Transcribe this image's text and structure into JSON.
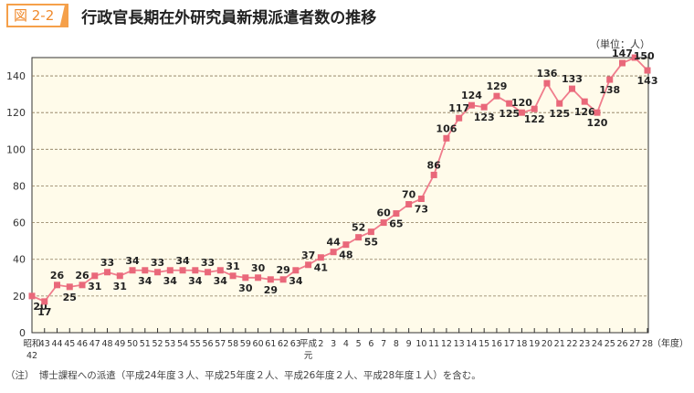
{
  "header": {
    "figure_label": "図 2-2",
    "title": "行政官長期在外研究員新規派遣者数の推移"
  },
  "note": "（注）　博士課程への派遣（平成24年度３人、平成25年度２人、平成26年度２人、平成28年度１人）を含む。",
  "chart_data": {
    "type": "line",
    "title": "行政官長期在外研究員新規派遣者数の推移",
    "unit_label": "（単位：人）",
    "xlabel": "（年度）",
    "ylim": [
      0,
      150
    ],
    "yticks": [
      0,
      20,
      40,
      60,
      80,
      100,
      120,
      140
    ],
    "grid": true,
    "x": [
      "昭和42",
      "43",
      "44",
      "45",
      "46",
      "47",
      "48",
      "49",
      "50",
      "51",
      "52",
      "53",
      "54",
      "55",
      "56",
      "57",
      "58",
      "59",
      "60",
      "61",
      "62",
      "63",
      "平成元",
      "2",
      "3",
      "4",
      "5",
      "6",
      "7",
      "8",
      "9",
      "10",
      "11",
      "12",
      "13",
      "14",
      "15",
      "16",
      "17",
      "18",
      "19",
      "20",
      "21",
      "22",
      "23",
      "24",
      "25",
      "26",
      "27",
      "28"
    ],
    "values": [
      20,
      17,
      26,
      25,
      26,
      31,
      33,
      31,
      34,
      34,
      33,
      34,
      34,
      34,
      33,
      34,
      31,
      30,
      30,
      29,
      29,
      34,
      37,
      41,
      44,
      48,
      52,
      55,
      60,
      65,
      70,
      73,
      86,
      106,
      117,
      124,
      123,
      129,
      125,
      120,
      122,
      136,
      125,
      133,
      126,
      120,
      138,
      147,
      150,
      143
    ],
    "line_color": "#f07c8c",
    "marker_color": "#e9687a",
    "background": "#fffbea"
  }
}
